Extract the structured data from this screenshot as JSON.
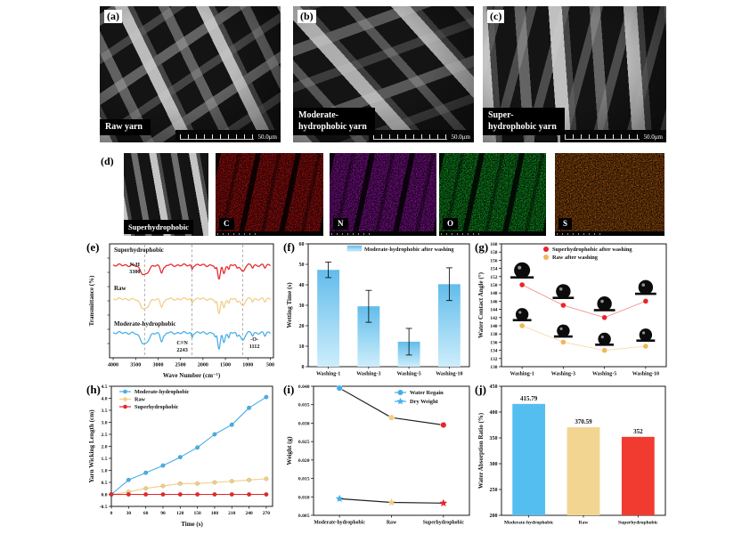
{
  "panels": {
    "a": {
      "tag": "(a)",
      "caption": "Raw yarn",
      "scale_label": "50.0μm"
    },
    "b": {
      "tag": "(b)",
      "caption_lines": [
        "Moderate-",
        "hydrophobic yarn"
      ],
      "scale_label": "50.0μm"
    },
    "c": {
      "tag": "(c)",
      "caption_lines": [
        "Super-",
        "hydrophobic yarn"
      ],
      "scale_label": "50.0μm"
    },
    "d": {
      "tag": "(d)",
      "caption": "Superhydrophobic",
      "maps": [
        {
          "element": "C",
          "color": "#b31010"
        },
        {
          "element": "N",
          "color": "#8d12a0"
        },
        {
          "element": "O",
          "color": "#129c24"
        },
        {
          "element": "S",
          "color": "#a8560f"
        }
      ]
    },
    "e": {
      "tag": "(e)"
    },
    "f": {
      "tag": "(f)"
    },
    "g": {
      "tag": "(g)"
    },
    "h": {
      "tag": "(h)"
    },
    "i": {
      "tag": "(i)"
    },
    "j": {
      "tag": "(j)"
    }
  },
  "chart_data": [
    {
      "panel": "e",
      "type": "line",
      "subtype": "ftir-spectra",
      "xlabel": "Wave Number (cm⁻¹)",
      "ylabel": "Transmittance (%)",
      "xlim": [
        4000,
        500
      ],
      "xticks": [
        4000,
        3500,
        3000,
        2500,
        2000,
        1500,
        1000,
        500
      ],
      "series": [
        {
          "name": "Superhydrophobic",
          "color": "#e8262a",
          "label_color": "#f59a1d"
        },
        {
          "name": "Raw",
          "color": "#f2ce85",
          "label_color": "#f0c768"
        },
        {
          "name": "Moderate-hydrophobic",
          "color": "#45aee8",
          "label_color": "#45aee8"
        }
      ],
      "annotations": [
        {
          "line1": "N-H",
          "line2": "3300",
          "x": 3300
        },
        {
          "line1": "C≡N",
          "line2": "2243",
          "x": 2243
        },
        {
          "line1": "-O-",
          "line2": "1112",
          "x": 1112
        }
      ]
    },
    {
      "panel": "f",
      "type": "bar",
      "legend": [
        "Moderate-hydrophobic after washing"
      ],
      "categories": [
        "Washing-1",
        "Washing-3",
        "Washing-5",
        "Washing-10"
      ],
      "values": [
        47.3,
        29.5,
        12.2,
        40.3
      ],
      "errors": [
        3.8,
        7.8,
        6.5,
        8.0
      ],
      "ylabel": "Wetting Time (s)",
      "ylim": [
        0,
        60
      ],
      "ytick_step": 10,
      "bar_color_top": "#63bceb",
      "bar_color_bottom": "#cdeefb"
    },
    {
      "panel": "g",
      "type": "scatter",
      "categories": [
        "Washing-1",
        "Washing-3",
        "Washing-5",
        "Washing-10"
      ],
      "series": [
        {
          "name": "Superhydrophobic after washing",
          "color": "#e8262a",
          "values": [
            150,
            145,
            142,
            146
          ]
        },
        {
          "name": "Raw after washing",
          "color": "#f0b65a",
          "values": [
            140,
            136,
            134,
            135
          ]
        }
      ],
      "ylabel": "Water Contact Angle (°)",
      "ylim": [
        130,
        160
      ],
      "ytick_step": 2
    },
    {
      "panel": "h",
      "type": "line",
      "x": [
        0,
        30,
        60,
        90,
        120,
        150,
        180,
        210,
        240,
        270
      ],
      "series": [
        {
          "name": "Moderate-hydrophobic",
          "color": "#45aee8",
          "values": [
            0,
            0.6,
            0.9,
            1.2,
            1.55,
            1.95,
            2.5,
            2.9,
            3.6,
            4.05
          ]
        },
        {
          "name": "Raw",
          "color": "#f2ce85",
          "values": [
            0,
            0.1,
            0.25,
            0.35,
            0.45,
            0.45,
            0.5,
            0.55,
            0.6,
            0.65
          ]
        },
        {
          "name": "Superhydrophobic",
          "color": "#e8262a",
          "values": [
            0,
            0,
            0,
            0,
            0,
            0,
            0,
            0,
            0,
            0
          ]
        }
      ],
      "xlabel": "Time (s)",
      "ylabel": "Yarn Wicking Length (cm)",
      "ylim": [
        -0.5,
        4.5
      ],
      "ytick_step": 0.5
    },
    {
      "panel": "i",
      "type": "line",
      "categories": [
        "Moderate-hydrophobic",
        "Raw",
        "Superhydrophobic"
      ],
      "series": [
        {
          "name": "Water Regain",
          "marker": "circle",
          "point_colors": [
            "#45aee8",
            "#f2ce85",
            "#e8262a"
          ],
          "values": [
            0.0395,
            0.0315,
            0.0295
          ]
        },
        {
          "name": "Dry Weight",
          "marker": "star",
          "point_colors": [
            "#45aee8",
            "#f2ce85",
            "#e8262a"
          ],
          "values": [
            0.0095,
            0.0085,
            0.0083
          ]
        }
      ],
      "ylabel": "Weight (g)",
      "ylim": [
        0.005,
        0.04
      ],
      "ytick_step": 0.005
    },
    {
      "panel": "j",
      "type": "bar",
      "categories": [
        "Moderate-hydrophobic",
        "Raw",
        "Superhydrophobic"
      ],
      "values": [
        415.79,
        370.59,
        352
      ],
      "value_labels": [
        "415.79",
        "370.59",
        "352"
      ],
      "colors": [
        "#55bef0",
        "#f2d591",
        "#f23b30"
      ],
      "ylabel": "Water Absorption Ratio (%)",
      "ylim": [
        200,
        450
      ],
      "ytick_step": 50
    }
  ]
}
